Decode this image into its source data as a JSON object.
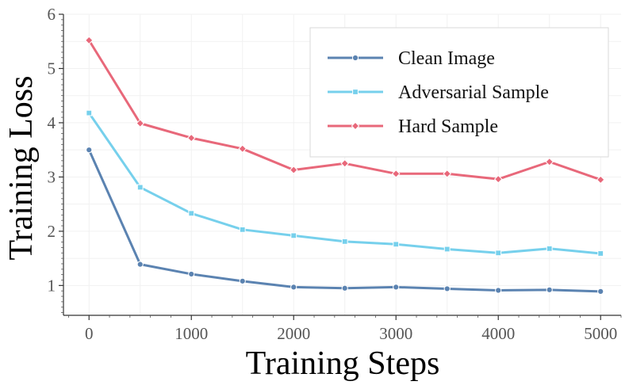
{
  "chart_data": {
    "type": "line",
    "title": "",
    "xlabel": "Training Steps",
    "ylabel": "Training Loss",
    "x": [
      0,
      500,
      1000,
      1500,
      2000,
      2500,
      3000,
      3500,
      4000,
      4500,
      5000
    ],
    "xlim": [
      -250,
      5200
    ],
    "ylim": [
      0.45,
      6
    ],
    "xticks": [
      0,
      1000,
      2000,
      3000,
      4000,
      5000
    ],
    "yticks": [
      1,
      2,
      3,
      4,
      5,
      6
    ],
    "xtick_labels": [
      "0",
      "1000",
      "2000",
      "3000",
      "4000",
      "5000"
    ],
    "ytick_labels": [
      "1",
      "2",
      "3",
      "4",
      "5",
      "6"
    ],
    "grid": true,
    "legend_position": "top-right",
    "series": [
      {
        "name": "Clean Image",
        "color": "#5b83b1",
        "marker": "circle",
        "values": [
          3.5,
          1.39,
          1.21,
          1.08,
          0.97,
          0.95,
          0.97,
          0.94,
          0.91,
          0.92,
          0.89
        ]
      },
      {
        "name": "Adversarial Sample",
        "color": "#76d0ec",
        "marker": "square",
        "values": [
          4.18,
          2.81,
          2.33,
          2.03,
          1.92,
          1.81,
          1.76,
          1.67,
          1.6,
          1.68,
          1.59
        ]
      },
      {
        "name": "Hard Sample",
        "color": "#e8687a",
        "marker": "diamond",
        "values": [
          5.52,
          3.99,
          3.72,
          3.52,
          3.13,
          3.25,
          3.06,
          3.06,
          2.96,
          3.28,
          2.95
        ]
      }
    ]
  }
}
